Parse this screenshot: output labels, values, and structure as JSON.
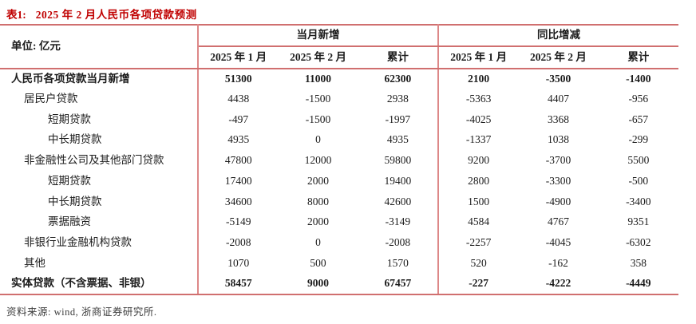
{
  "page": {
    "title_prefix": "表1:",
    "title_text": "2025 年 2 月人民币各项贷款预测",
    "source_note": "资料来源: wind, 浙商证券研究所."
  },
  "colors": {
    "title_red": "#c00000",
    "table_border_red": "#d06f6f"
  },
  "table": {
    "unit_label": "单位: 亿元",
    "group_headers": [
      "当月新增",
      "同比增减"
    ],
    "sub_headers": [
      "2025 年 1 月",
      "2025 年 2 月",
      "累计",
      "2025 年 1 月",
      "2025 年 2 月",
      "累计"
    ],
    "rows": [
      {
        "label": "人民币各项贷款当月新增",
        "indent": 0,
        "bold": true,
        "values": [
          "51300",
          "11000",
          "62300",
          "2100",
          "-3500",
          "-1400"
        ]
      },
      {
        "label": "居民户贷款",
        "indent": 1,
        "bold": false,
        "values": [
          "4438",
          "-1500",
          "2938",
          "-5363",
          "4407",
          "-956"
        ]
      },
      {
        "label": "短期贷款",
        "indent": 2,
        "bold": false,
        "values": [
          "-497",
          "-1500",
          "-1997",
          "-4025",
          "3368",
          "-657"
        ]
      },
      {
        "label": "中长期贷款",
        "indent": 2,
        "bold": false,
        "values": [
          "4935",
          "0",
          "4935",
          "-1337",
          "1038",
          "-299"
        ]
      },
      {
        "label": "非金融性公司及其他部门贷款",
        "indent": 1,
        "bold": false,
        "values": [
          "47800",
          "12000",
          "59800",
          "9200",
          "-3700",
          "5500"
        ]
      },
      {
        "label": "短期贷款",
        "indent": 2,
        "bold": false,
        "values": [
          "17400",
          "2000",
          "19400",
          "2800",
          "-3300",
          "-500"
        ]
      },
      {
        "label": "中长期贷款",
        "indent": 2,
        "bold": false,
        "values": [
          "34600",
          "8000",
          "42600",
          "1500",
          "-4900",
          "-3400"
        ]
      },
      {
        "label": "票据融资",
        "indent": 2,
        "bold": false,
        "values": [
          "-5149",
          "2000",
          "-3149",
          "4584",
          "4767",
          "9351"
        ]
      },
      {
        "label": "非银行业金融机构贷款",
        "indent": 1,
        "bold": false,
        "values": [
          "-2008",
          "0",
          "-2008",
          "-2257",
          "-4045",
          "-6302"
        ]
      },
      {
        "label": "其他",
        "indent": 1,
        "bold": false,
        "values": [
          "1070",
          "500",
          "1570",
          "520",
          "-162",
          "358"
        ]
      },
      {
        "label": "实体贷款（不含票据、非银）",
        "indent": 0,
        "bold": true,
        "values": [
          "58457",
          "9000",
          "67457",
          "-227",
          "-4222",
          "-4449"
        ]
      }
    ]
  }
}
